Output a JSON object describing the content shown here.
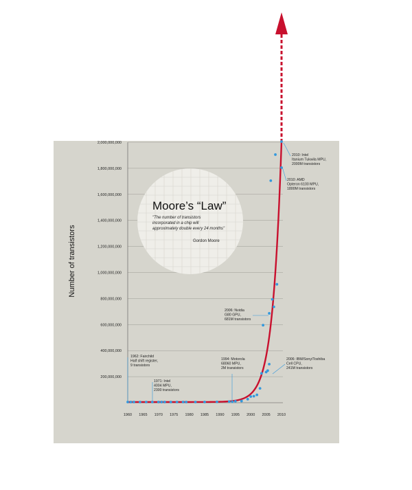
{
  "chart_data": {
    "type": "scatter",
    "title": "Moore’s “Law”",
    "quote_lines": [
      "\"The number of transistors",
      "incorporated in a chip will",
      "approximately double every 24 months\""
    ],
    "quote_author": "Gordon Moore",
    "ylabel": "Number of transistors",
    "xlabel": "",
    "xlim": [
      1960,
      2010
    ],
    "ylim": [
      0,
      2000000000
    ],
    "x_ticks": [
      "1960",
      "1965",
      "1970",
      "1975",
      "1980",
      "1985",
      "1990",
      "1995",
      "2000",
      "2005",
      "2010"
    ],
    "y_ticks": [
      "200,000,000",
      "400,000,000",
      "600,000,000",
      "800,000,000",
      "1,000,000,000",
      "1,200,000,000",
      "1,400,000,000",
      "1,600,000,000",
      "1,800,000,000",
      "2,000,000,000"
    ],
    "grid": true,
    "colors": {
      "points": "#3399dd",
      "trend": "#c8102e",
      "panel": "#d6d5cd",
      "circle": "#eeeeea"
    },
    "points": [
      {
        "x": 1960,
        "y": 0
      },
      {
        "x": 1961,
        "y": 0
      },
      {
        "x": 1962,
        "y": 9
      },
      {
        "x": 1964,
        "y": 0
      },
      {
        "x": 1966,
        "y": 0
      },
      {
        "x": 1968,
        "y": 0
      },
      {
        "x": 1970,
        "y": 0
      },
      {
        "x": 1971,
        "y": 2300
      },
      {
        "x": 1972,
        "y": 3500
      },
      {
        "x": 1974,
        "y": 4500
      },
      {
        "x": 1976,
        "y": 6500
      },
      {
        "x": 1978,
        "y": 29000
      },
      {
        "x": 1979,
        "y": 68000
      },
      {
        "x": 1982,
        "y": 134000
      },
      {
        "x": 1985,
        "y": 275000
      },
      {
        "x": 1989,
        "y": 1200000
      },
      {
        "x": 1993,
        "y": 3100000
      },
      {
        "x": 1994,
        "y": 2000000
      },
      {
        "x": 1995,
        "y": 5500000
      },
      {
        "x": 1997,
        "y": 7500000
      },
      {
        "x": 1999,
        "y": 22000000
      },
      {
        "x": 2000,
        "y": 42000000
      },
      {
        "x": 2001,
        "y": 45000000
      },
      {
        "x": 2002,
        "y": 55000000
      },
      {
        "x": 2003,
        "y": 105000000
      },
      {
        "x": 2003.5,
        "y": 220000000
      },
      {
        "x": 2004,
        "y": 590000000
      },
      {
        "x": 2005,
        "y": 230000000
      },
      {
        "x": 2005.5,
        "y": 241000000
      },
      {
        "x": 2006,
        "y": 291000000
      },
      {
        "x": 2006,
        "y": 681000000
      },
      {
        "x": 2006.5,
        "y": 1700000000
      },
      {
        "x": 2007,
        "y": 789000000
      },
      {
        "x": 2007.5,
        "y": 731000000
      },
      {
        "x": 2008,
        "y": 1900000000
      },
      {
        "x": 2008.5,
        "y": 904000000
      },
      {
        "x": 2010,
        "y": 1800000000
      },
      {
        "x": 2010,
        "y": 2000000000
      }
    ],
    "annotations": [
      {
        "key": "a1962",
        "lines": [
          "1962: Fairchild",
          "Half shift register,",
          "9 transistors"
        ]
      },
      {
        "key": "a1971",
        "lines": [
          "1971: Intel",
          "4004 MPU,",
          "2300 transistors"
        ]
      },
      {
        "key": "a1994",
        "lines": [
          "1994: Motorola",
          "68060 MPU,",
          "2M transistors"
        ]
      },
      {
        "key": "a2006n",
        "lines": [
          "2006: Nvidia",
          "G80 GPU,",
          "681M transistors"
        ]
      },
      {
        "key": "a2006c",
        "lines": [
          "2006: IBM/Sony/Toshiba",
          "Cell CPU,",
          "241M transistors"
        ]
      },
      {
        "key": "a2010a",
        "lines": [
          "2010: AMD",
          "Opteron 6100 MPU,",
          "1800M transistors"
        ]
      },
      {
        "key": "a2010i",
        "lines": [
          "2010: Intel",
          "Itanium Tukwila MPU,",
          "2000M transistors"
        ]
      }
    ]
  }
}
